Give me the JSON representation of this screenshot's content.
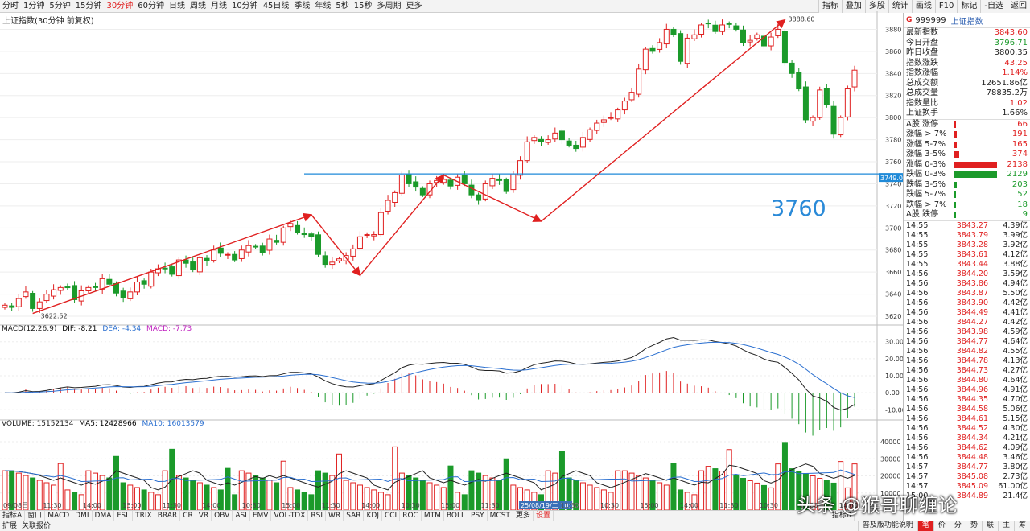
{
  "toolbar": {
    "periods": [
      "分时",
      "1分钟",
      "5分钟",
      "15分钟",
      "30分钟",
      "60分钟",
      "日线",
      "周线",
      "月线",
      "10分钟",
      "45日线",
      "季线",
      "年线",
      "5秒",
      "15秒",
      "多周期",
      "更多"
    ],
    "active_period": "30分钟",
    "right_buttons": [
      "指标",
      "叠加",
      "多股",
      "统计",
      "画线",
      "F10",
      "标记",
      "-自选",
      "返回"
    ]
  },
  "chart_title": "上证指数(30分钟 前复权)",
  "annotation_big": "3760",
  "hline_label": "3749.0",
  "high_label": "3888.60",
  "low_label": "3622.52",
  "macd_legend": {
    "name": "MACD(12,26,9)",
    "dif": "DIF: -8.21",
    "dea": "DEA: -4.34",
    "macd": "MACD: -7.73"
  },
  "vol_legend": {
    "name": "VOLUME: 15152134",
    "ma5": "MA5: 12428966",
    "ma10": "MA10: 16013579"
  },
  "x_labels": [
    "09/08日",
    "11:30",
    "14:00",
    "15:00",
    "11:30",
    "14:00",
    "10:30",
    "15:00",
    "11:30",
    "14:00",
    "10:30",
    "15:00",
    "11:30",
    "25/08/19/二 10:30",
    "11:30",
    "10:30",
    "15:00",
    "14:00",
    "11:30",
    "10:30",
    "15:00",
    "14:00"
  ],
  "indicator_tabs": [
    "指标A",
    "窗口",
    "MACD",
    "DMI",
    "DMA",
    "FSL",
    "TRIX",
    "BRAR",
    "CR",
    "VR",
    "OBV",
    "ASI",
    "EMV",
    "VOL-TDX",
    "RSI",
    "WR",
    "SAR",
    "KDJ",
    "CCI",
    "ROC",
    "MTM",
    "BOLL",
    "PSY",
    "MCST",
    "更多",
    "设置"
  ],
  "indicator_right": "指标B",
  "bottom_left": [
    "扩展",
    "关联报价"
  ],
  "bottom_right": [
    "普及版功能说明",
    "笔",
    "价",
    "分",
    "势",
    "联",
    "主",
    "筹"
  ],
  "watermark": "头条 @猴哥聊缠论",
  "quote": {
    "symbol_flag": "G",
    "code": "999999",
    "name": "上证指数",
    "rows": [
      {
        "label": "最新指数",
        "value": "3843.60",
        "color": "red"
      },
      {
        "label": "今日开盘",
        "value": "3796.71",
        "color": "green"
      },
      {
        "label": "昨日收盘",
        "value": "3800.35",
        "color": "black"
      },
      {
        "label": "指数涨跌",
        "value": "43.25",
        "color": "red"
      },
      {
        "label": "指数涨幅",
        "value": "1.14%",
        "color": "red"
      },
      {
        "label": "总成交额",
        "value": "12651.86亿",
        "color": "black"
      },
      {
        "label": "总成交量",
        "value": "78835.2万",
        "color": "black"
      },
      {
        "label": "指数量比",
        "value": "1.02",
        "color": "red"
      },
      {
        "label": "上证换手",
        "value": "1.66%",
        "color": "black"
      }
    ]
  },
  "distribution": [
    {
      "label": "A股 涨停",
      "count": "66",
      "color": "#e02020",
      "frac": 0.02
    },
    {
      "label": "涨幅 > 7%",
      "count": "191",
      "color": "#e02020",
      "frac": 0.05
    },
    {
      "label": "涨幅 5-7%",
      "count": "165",
      "color": "#e02020",
      "frac": 0.045
    },
    {
      "label": "涨幅 3-5%",
      "count": "374",
      "color": "#e02020",
      "frac": 0.1
    },
    {
      "label": "涨幅 0-3%",
      "count": "2138",
      "color": "#e02020",
      "frac": 0.95
    },
    {
      "label": "跌幅 0-3%",
      "count": "2129",
      "color": "#1b9a2a",
      "frac": 0.95
    },
    {
      "label": "跌幅 3-5%",
      "count": "203",
      "color": "#1b9a2a",
      "frac": 0.055
    },
    {
      "label": "跌幅 5-7%",
      "count": "52",
      "color": "#1b9a2a",
      "frac": 0.015
    },
    {
      "label": "跌幅 > 7%",
      "count": "18",
      "color": "#1b9a2a",
      "frac": 0.008
    },
    {
      "label": "A股 跌停",
      "count": "9",
      "color": "#1b9a2a",
      "frac": 0.005
    }
  ],
  "ticks": [
    {
      "t": "14:55",
      "p": "3843.27",
      "v": "4.39亿"
    },
    {
      "t": "14:55",
      "p": "3843.79",
      "v": "3.99亿"
    },
    {
      "t": "14:55",
      "p": "3843.28",
      "v": "3.92亿"
    },
    {
      "t": "14:55",
      "p": "3843.61",
      "v": "4.12亿"
    },
    {
      "t": "14:55",
      "p": "3843.44",
      "v": "3.88亿"
    },
    {
      "t": "14:56",
      "p": "3844.20",
      "v": "3.59亿"
    },
    {
      "t": "14:56",
      "p": "3843.86",
      "v": "4.94亿"
    },
    {
      "t": "14:56",
      "p": "3843.87",
      "v": "5.50亿"
    },
    {
      "t": "14:56",
      "p": "3843.90",
      "v": "4.42亿"
    },
    {
      "t": "14:56",
      "p": "3844.49",
      "v": "4.41亿"
    },
    {
      "t": "14:56",
      "p": "3844.27",
      "v": "4.42亿"
    },
    {
      "t": "14:56",
      "p": "3843.98",
      "v": "4.59亿"
    },
    {
      "t": "14:56",
      "p": "3844.77",
      "v": "4.64亿"
    },
    {
      "t": "14:56",
      "p": "3844.82",
      "v": "4.55亿"
    },
    {
      "t": "14:56",
      "p": "3844.78",
      "v": "4.13亿"
    },
    {
      "t": "14:56",
      "p": "3844.73",
      "v": "4.27亿"
    },
    {
      "t": "14:56",
      "p": "3844.80",
      "v": "4.64亿"
    },
    {
      "t": "14:56",
      "p": "3844.96",
      "v": "4.91亿"
    },
    {
      "t": "14:56",
      "p": "3844.35",
      "v": "4.70亿"
    },
    {
      "t": "14:56",
      "p": "3844.58",
      "v": "5.06亿"
    },
    {
      "t": "14:56",
      "p": "3844.61",
      "v": "5.15亿"
    },
    {
      "t": "14:56",
      "p": "3844.52",
      "v": "4.30亿"
    },
    {
      "t": "14:56",
      "p": "3844.34",
      "v": "4.21亿"
    },
    {
      "t": "14:56",
      "p": "3844.62",
      "v": "4.09亿"
    },
    {
      "t": "14:56",
      "p": "3844.48",
      "v": "3.46亿"
    },
    {
      "t": "14:57",
      "p": "3844.77",
      "v": "3.80亿"
    },
    {
      "t": "14:57",
      "p": "3845.08",
      "v": "2.73亿"
    },
    {
      "t": "14:57",
      "p": "3845.09",
      "v": "61.00亿"
    },
    {
      "t": "15:00",
      "p": "3844.89",
      "v": "21.4亿"
    }
  ],
  "chart_data": [
    {
      "type": "candlestick",
      "title": "上证指数(30分钟 前复权)",
      "ylim": [
        3612,
        3892
      ],
      "yticks": [
        3620,
        3640,
        3660,
        3680,
        3700,
        3720,
        3740,
        3760,
        3780,
        3800,
        3820,
        3840,
        3860,
        3880
      ],
      "horizontal_line": 3749.0,
      "candles_close": [
        3630,
        3628,
        3636,
        3642,
        3627,
        3633,
        3640,
        3644,
        3646,
        3646,
        3635,
        3643,
        3646,
        3646,
        3654,
        3649,
        3641,
        3637,
        3642,
        3651,
        3649,
        3660,
        3663,
        3663,
        3658,
        3671,
        3668,
        3662,
        3673,
        3670,
        3680,
        3677,
        3676,
        3671,
        3680,
        3684,
        3683,
        3678,
        3690,
        3687,
        3700,
        3704,
        3696,
        3694,
        3692,
        3676,
        3667,
        3669,
        3672,
        3675,
        3681,
        3692,
        3694,
        3694,
        3714,
        3725,
        3732,
        3748,
        3740,
        3737,
        3730,
        3740,
        3743,
        3744,
        3738,
        3746,
        3740,
        3730,
        3725,
        3740,
        3745,
        3743,
        3733,
        3749,
        3761,
        3778,
        3782,
        3778,
        3780,
        3786,
        3780,
        3775,
        3772,
        3782,
        3789,
        3795,
        3798,
        3800,
        3807,
        3815,
        3823,
        3844,
        3862,
        3860,
        3868,
        3880,
        3875,
        3851,
        3872,
        3875,
        3884,
        3885,
        3878,
        3884,
        3885,
        3880,
        3868,
        3870,
        3875,
        3865,
        3873,
        3880,
        3850,
        3840,
        3826,
        3798,
        3800,
        3825,
        3812,
        3785,
        3800,
        3826,
        3843
      ],
      "pivots": [
        {
          "i": 4,
          "v": 3622.52
        },
        {
          "i": 44,
          "v": 3712
        },
        {
          "i": 51,
          "v": 3657
        },
        {
          "i": 63,
          "v": 3748
        },
        {
          "i": 77,
          "v": 3706
        },
        {
          "i": 112,
          "v": 3888.6
        }
      ]
    },
    {
      "type": "macd",
      "legend": "MACD(12,26,9)",
      "ylim": [
        -16,
        36
      ],
      "yticks": [
        -10,
        0,
        10,
        20,
        30
      ],
      "dif": [
        -8.21
      ],
      "dea": [
        -4.34
      ],
      "macd": [
        -7.73
      ]
    },
    {
      "type": "bar",
      "legend": "VOLUME",
      "ylim": [
        0,
        48000
      ],
      "yticks": [
        10000,
        20000,
        30000,
        40000
      ],
      "volume_total": 15152134,
      "ma5": 12428966,
      "ma10": 16013579
    }
  ]
}
